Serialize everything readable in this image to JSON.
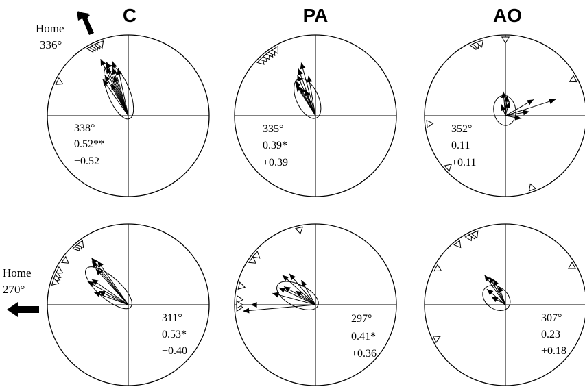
{
  "columns": [
    "C",
    "PA",
    "AO"
  ],
  "home_top": {
    "label": "Home",
    "bearing": "336°"
  },
  "home_bottom": {
    "label": "Home",
    "bearing": "270°"
  },
  "panels": [
    {
      "row": 0,
      "col": 0,
      "mean": "338°",
      "r": "0.52**",
      "hv": "+0.52",
      "mean_deg": 338,
      "r_val": 0.52,
      "arrows": [
        [
          338,
          0.72
        ],
        [
          334,
          0.78
        ],
        [
          342,
          0.62
        ],
        [
          330,
          0.58
        ],
        [
          340,
          0.52
        ],
        [
          336,
          0.66
        ],
        [
          325,
          0.55
        ],
        [
          348,
          0.6
        ],
        [
          332,
          0.45
        ],
        [
          344,
          0.7
        ]
      ],
      "triangles": [
        331,
        333,
        335,
        337,
        339,
        296
      ]
    },
    {
      "row": 0,
      "col": 1,
      "mean": "335°",
      "r": "0.39*",
      "hv": "+0.39",
      "mean_deg": 335,
      "r_val": 0.39,
      "arrows": [
        [
          336,
          0.55
        ],
        [
          330,
          0.5
        ],
        [
          340,
          0.62
        ],
        [
          345,
          0.68
        ],
        [
          332,
          0.4
        ],
        [
          328,
          0.45
        ],
        [
          338,
          0.35
        ],
        [
          350,
          0.5
        ]
      ],
      "triangles": [
        315,
        318,
        321,
        324,
        326,
        329
      ]
    },
    {
      "row": 0,
      "col": 2,
      "mean": "352°",
      "r": "0.11",
      "hv": "+0.11",
      "mean_deg": 352,
      "r_val": 0.11,
      "arrows": [
        [
          72,
          0.65
        ],
        [
          355,
          0.3
        ],
        [
          5,
          0.25
        ],
        [
          60,
          0.4
        ],
        [
          80,
          0.3
        ],
        [
          340,
          0.15
        ],
        [
          100,
          0.2
        ],
        [
          15,
          0.18
        ]
      ],
      "triangles": [
        336,
        338,
        341,
        360,
        62,
        264,
        228,
        160
      ]
    },
    {
      "row": 1,
      "col": 0,
      "mean": "311°",
      "r": "0.53*",
      "hv": "+0.40",
      "mean_deg": 311,
      "r_val": 0.53,
      "arrows": [
        [
          322,
          0.74
        ],
        [
          320,
          0.7
        ],
        [
          325,
          0.66
        ],
        [
          318,
          0.6
        ],
        [
          300,
          0.58
        ],
        [
          305,
          0.55
        ],
        [
          290,
          0.45
        ],
        [
          295,
          0.4
        ]
      ],
      "triangles": [
        318,
        320,
        322,
        305,
        296,
        292,
        290,
        287
      ]
    },
    {
      "row": 1,
      "col": 1,
      "mean": "297°",
      "r": "0.41*",
      "hv": "+0.36",
      "mean_deg": 297,
      "r_val": 0.41,
      "arrows": [
        [
          312,
          0.55
        ],
        [
          320,
          0.5
        ],
        [
          330,
          0.35
        ],
        [
          300,
          0.45
        ],
        [
          295,
          0.5
        ],
        [
          285,
          0.55
        ],
        [
          265,
          0.9
        ],
        [
          270,
          0.8
        ],
        [
          305,
          0.3
        ]
      ],
      "triangles": [
        348,
        310,
        305,
        284,
        274,
        268,
        270
      ]
    },
    {
      "row": 1,
      "col": 2,
      "mean": "307°",
      "r": "0.23",
      "hv": "+0.18",
      "mean_deg": 307,
      "r_val": 0.23,
      "arrows": [
        [
          330,
          0.4
        ],
        [
          335,
          0.35
        ],
        [
          325,
          0.45
        ],
        [
          310,
          0.3
        ],
        [
          340,
          0.25
        ],
        [
          300,
          0.2
        ]
      ],
      "triangles": [
        332,
        335,
        337,
        322,
        298,
        244,
        60
      ]
    }
  ]
}
